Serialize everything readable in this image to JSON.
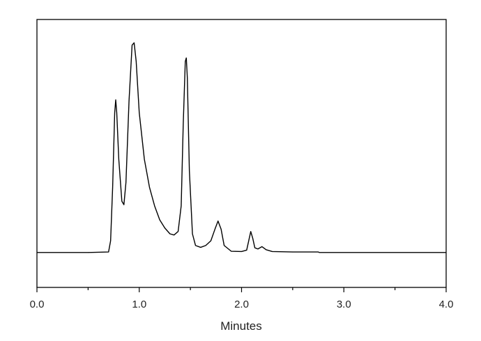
{
  "chart_data": {
    "type": "line",
    "title": "",
    "xlabel": "Minutes",
    "ylabel": "",
    "xlim": [
      0.0,
      4.0
    ],
    "ylim": [
      -0.15,
      1.0
    ],
    "grid": false,
    "legend": "none",
    "x_ticks": [
      0.0,
      1.0,
      2.0,
      3.0,
      4.0
    ],
    "x_tick_labels": [
      "0.0",
      "1.0",
      "2.0",
      "3.0",
      "4.0"
    ],
    "x_minor_ticks": [
      0.5,
      1.5,
      2.5,
      3.5
    ],
    "colors": {
      "trace": "#000000",
      "frame": "#000000",
      "background": "#ffffff"
    },
    "series": [
      {
        "values": [
          [
            0.0,
            0.0
          ],
          [
            0.5,
            0.0
          ],
          [
            0.7,
            0.002
          ],
          [
            0.72,
            0.05
          ],
          [
            0.74,
            0.28
          ],
          [
            0.76,
            0.6
          ],
          [
            0.77,
            0.655
          ],
          [
            0.78,
            0.6
          ],
          [
            0.8,
            0.4
          ],
          [
            0.83,
            0.22
          ],
          [
            0.85,
            0.205
          ],
          [
            0.87,
            0.3
          ],
          [
            0.9,
            0.65
          ],
          [
            0.93,
            0.89
          ],
          [
            0.95,
            0.9
          ],
          [
            0.97,
            0.82
          ],
          [
            1.0,
            0.6
          ],
          [
            1.05,
            0.4
          ],
          [
            1.1,
            0.28
          ],
          [
            1.15,
            0.2
          ],
          [
            1.2,
            0.14
          ],
          [
            1.25,
            0.105
          ],
          [
            1.3,
            0.08
          ],
          [
            1.34,
            0.075
          ],
          [
            1.38,
            0.09
          ],
          [
            1.41,
            0.2
          ],
          [
            1.43,
            0.55
          ],
          [
            1.45,
            0.82
          ],
          [
            1.46,
            0.835
          ],
          [
            1.47,
            0.75
          ],
          [
            1.49,
            0.35
          ],
          [
            1.52,
            0.08
          ],
          [
            1.55,
            0.03
          ],
          [
            1.6,
            0.022
          ],
          [
            1.65,
            0.03
          ],
          [
            1.7,
            0.05
          ],
          [
            1.74,
            0.1
          ],
          [
            1.77,
            0.135
          ],
          [
            1.8,
            0.1
          ],
          [
            1.83,
            0.03
          ],
          [
            1.9,
            0.005
          ],
          [
            2.0,
            0.004
          ],
          [
            2.05,
            0.01
          ],
          [
            2.07,
            0.05
          ],
          [
            2.09,
            0.09
          ],
          [
            2.11,
            0.06
          ],
          [
            2.13,
            0.02
          ],
          [
            2.16,
            0.015
          ],
          [
            2.2,
            0.025
          ],
          [
            2.24,
            0.012
          ],
          [
            2.3,
            0.004
          ],
          [
            2.5,
            0.002
          ],
          [
            2.75,
            0.002
          ],
          [
            2.76,
            0.0
          ],
          [
            3.0,
            0.0
          ],
          [
            3.5,
            0.0
          ],
          [
            4.0,
            0.0
          ]
        ]
      }
    ]
  }
}
